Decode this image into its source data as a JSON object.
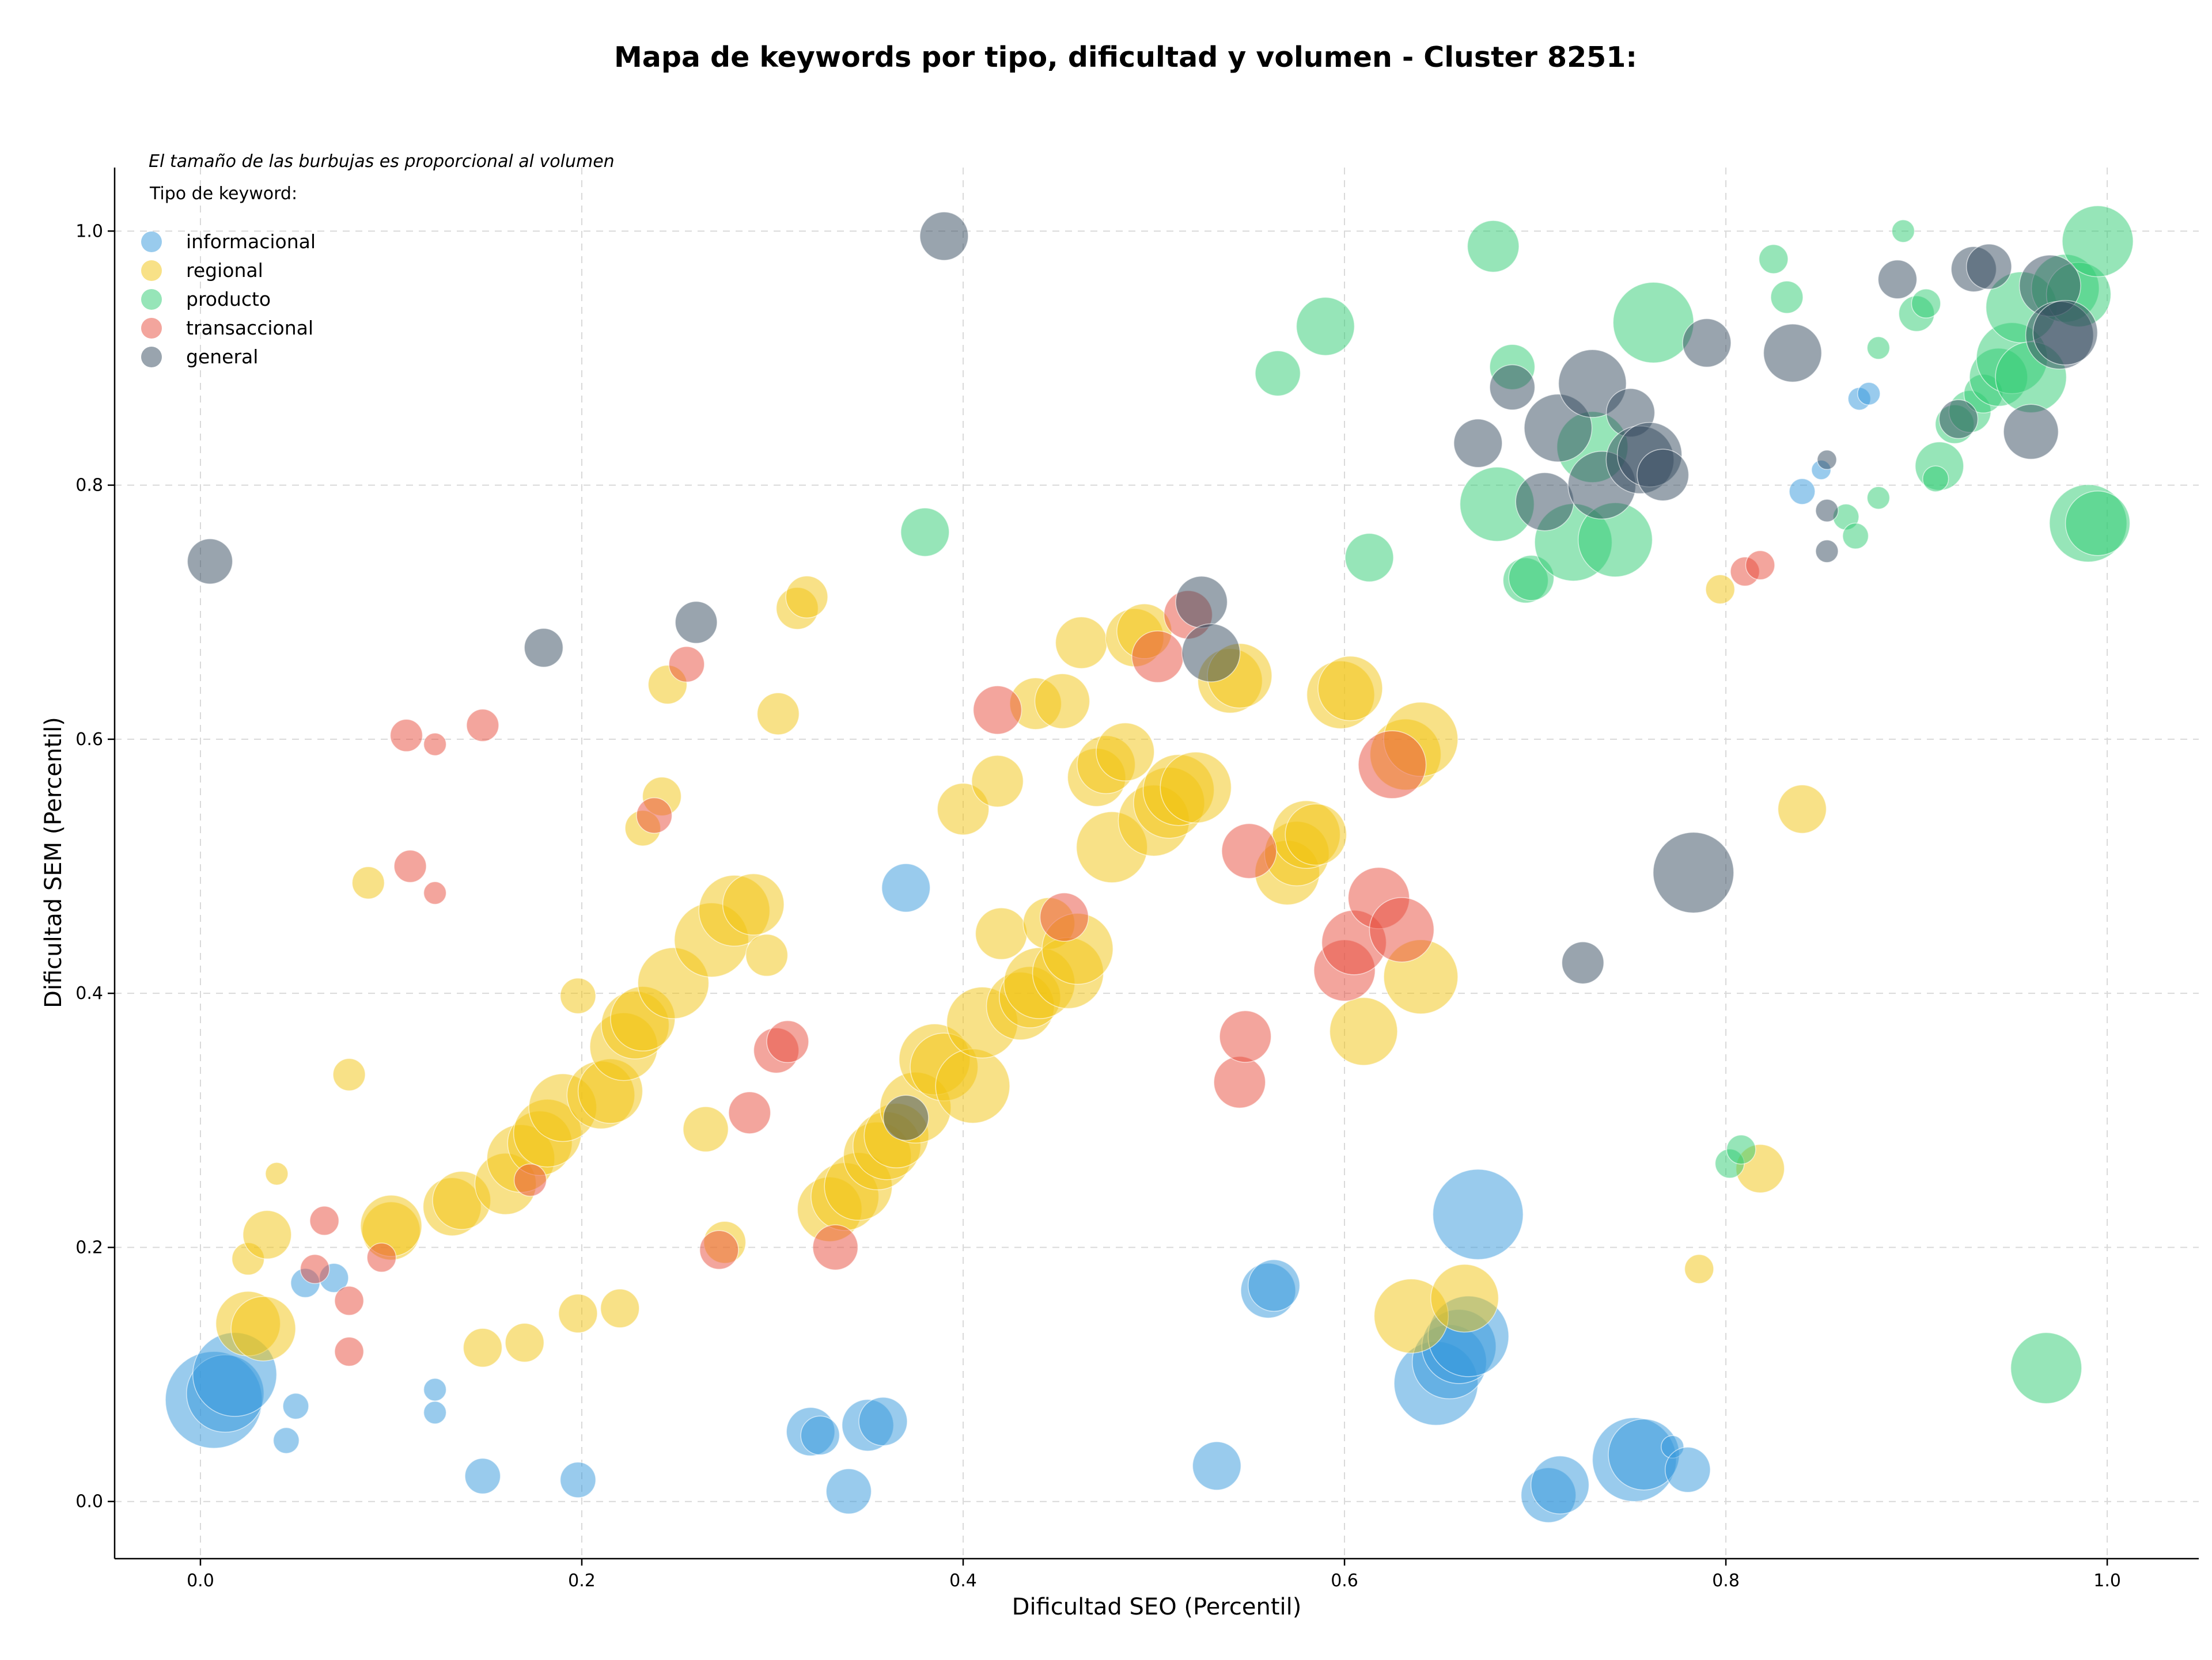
{
  "chart_data": {
    "type": "scatter",
    "title": "Mapa de keywords por tipo, dificultad y volumen - Cluster 8251:",
    "subtitle": "El tamaño de las burbujas es proporcional al volumen",
    "xlabel": "Dificultad SEO (Percentil)",
    "ylabel": "Dificultad SEM (Percentil)",
    "xlim": [
      -0.045,
      1.048
    ],
    "ylim": [
      -0.045,
      1.05
    ],
    "xticks": [
      "0.0",
      "0.2",
      "0.4",
      "0.6",
      "0.8",
      "1.0"
    ],
    "yticks": [
      "0.0",
      "0.2",
      "0.4",
      "0.6",
      "0.8",
      "1.0"
    ],
    "grid": true,
    "legend": {
      "title": "Tipo de keyword:",
      "placement": "top-left"
    },
    "series": [
      {
        "name": "informacional",
        "color": "#3498db",
        "points": [
          [
            0.007,
            0.08,
            3
          ],
          [
            0.013,
            0.085,
            2.4
          ],
          [
            0.018,
            0.1,
            2.6
          ],
          [
            0.05,
            0.075,
            0.8
          ],
          [
            0.045,
            0.048,
            0.8
          ],
          [
            0.055,
            0.172,
            0.9
          ],
          [
            0.07,
            0.176,
            0.9
          ],
          [
            0.123,
            0.088,
            0.7
          ],
          [
            0.123,
            0.07,
            0.7
          ],
          [
            0.148,
            0.02,
            1.1
          ],
          [
            0.198,
            0.017,
            1.1
          ],
          [
            0.32,
            0.055,
            1.5
          ],
          [
            0.325,
            0.052,
            1.2
          ],
          [
            0.34,
            0.008,
            1.4
          ],
          [
            0.35,
            0.06,
            1.6
          ],
          [
            0.358,
            0.063,
            1.5
          ],
          [
            0.37,
            0.483,
            1.5
          ],
          [
            0.533,
            0.028,
            1.5
          ],
          [
            0.56,
            0.166,
            1.7
          ],
          [
            0.563,
            0.17,
            1.6
          ],
          [
            0.648,
            0.093,
            2.6
          ],
          [
            0.655,
            0.11,
            2.3
          ],
          [
            0.66,
            0.122,
            2.3
          ],
          [
            0.665,
            0.13,
            2.5
          ],
          [
            0.67,
            0.226,
            2.8
          ],
          [
            0.707,
            0.005,
            1.7
          ],
          [
            0.713,
            0.013,
            1.8
          ],
          [
            0.752,
            0.033,
            2.6
          ],
          [
            0.757,
            0.037,
            2.2
          ],
          [
            0.772,
            0.043,
            0.7
          ],
          [
            0.78,
            0.025,
            1.4
          ],
          [
            0.84,
            0.795,
            0.8
          ],
          [
            0.85,
            0.812,
            0.6
          ],
          [
            0.87,
            0.868,
            0.7
          ],
          [
            0.875,
            0.872,
            0.7
          ]
        ]
      },
      {
        "name": "regional",
        "color": "#f1c40f",
        "points": [
          [
            0.04,
            0.258,
            0.7
          ],
          [
            0.025,
            0.191,
            1
          ],
          [
            0.035,
            0.21,
            1.5
          ],
          [
            0.025,
            0.14,
            2
          ],
          [
            0.033,
            0.136,
            2
          ],
          [
            0.088,
            0.487,
            1
          ],
          [
            0.078,
            0.336,
            1
          ],
          [
            0.1,
            0.213,
            1.8
          ],
          [
            0.1,
            0.217,
            1.9
          ],
          [
            0.132,
            0.232,
            1.8
          ],
          [
            0.137,
            0.237,
            1.8
          ],
          [
            0.148,
            0.121,
            1.2
          ],
          [
            0.16,
            0.25,
            1.9
          ],
          [
            0.168,
            0.27,
            2.1
          ],
          [
            0.17,
            0.125,
            1.2
          ],
          [
            0.178,
            0.282,
            2
          ],
          [
            0.182,
            0.29,
            2.1
          ],
          [
            0.19,
            0.31,
            2.1
          ],
          [
            0.198,
            0.398,
            1.1
          ],
          [
            0.198,
            0.148,
            1.2
          ],
          [
            0.21,
            0.32,
            2.1
          ],
          [
            0.215,
            0.323,
            2
          ],
          [
            0.22,
            0.152,
            1.2
          ],
          [
            0.222,
            0.358,
            2.1
          ],
          [
            0.228,
            0.375,
            2.1
          ],
          [
            0.232,
            0.38,
            2
          ],
          [
            0.232,
            0.53,
            1.1
          ],
          [
            0.242,
            0.555,
            1.2
          ],
          [
            0.245,
            0.643,
            1.2
          ],
          [
            0.248,
            0.408,
            2.2
          ],
          [
            0.265,
            0.293,
            1.4
          ],
          [
            0.268,
            0.442,
            2.3
          ],
          [
            0.275,
            0.204,
            1.3
          ],
          [
            0.28,
            0.465,
            2.2
          ],
          [
            0.29,
            0.47,
            1.9
          ],
          [
            0.297,
            0.43,
            1.3
          ],
          [
            0.303,
            0.62,
            1.3
          ],
          [
            0.313,
            0.703,
            1.3
          ],
          [
            0.318,
            0.712,
            1.3
          ],
          [
            0.33,
            0.23,
            2
          ],
          [
            0.338,
            0.24,
            2.1
          ],
          [
            0.345,
            0.248,
            2.1
          ],
          [
            0.355,
            0.272,
            2.1
          ],
          [
            0.36,
            0.28,
            2.1
          ],
          [
            0.365,
            0.288,
            2
          ],
          [
            0.375,
            0.31,
            2.2
          ],
          [
            0.385,
            0.348,
            2.2
          ],
          [
            0.39,
            0.342,
            2.1
          ],
          [
            0.4,
            0.545,
            1.6
          ],
          [
            0.405,
            0.327,
            2.3
          ],
          [
            0.41,
            0.377,
            2.2
          ],
          [
            0.418,
            0.567,
            1.6
          ],
          [
            0.42,
            0.447,
            1.6
          ],
          [
            0.43,
            0.39,
            2.1
          ],
          [
            0.435,
            0.397,
            1.9
          ],
          [
            0.438,
            0.628,
            1.6
          ],
          [
            0.44,
            0.408,
            2.2
          ],
          [
            0.445,
            0.455,
            1.6
          ],
          [
            0.452,
            0.63,
            1.7
          ],
          [
            0.455,
            0.416,
            2.2
          ],
          [
            0.46,
            0.435,
            2.2
          ],
          [
            0.462,
            0.676,
            1.6
          ],
          [
            0.47,
            0.57,
            1.8
          ],
          [
            0.475,
            0.58,
            1.8
          ],
          [
            0.478,
            0.515,
            2.2
          ],
          [
            0.485,
            0.59,
            1.8
          ],
          [
            0.49,
            0.68,
            1.8
          ],
          [
            0.495,
            0.685,
            1.7
          ],
          [
            0.5,
            0.536,
            2.2
          ],
          [
            0.508,
            0.55,
            2.2
          ],
          [
            0.513,
            0.56,
            2.2
          ],
          [
            0.522,
            0.562,
            2.2
          ],
          [
            0.54,
            0.646,
            2
          ],
          [
            0.545,
            0.65,
            2
          ],
          [
            0.57,
            0.495,
            2
          ],
          [
            0.575,
            0.51,
            2
          ],
          [
            0.58,
            0.525,
            2.1
          ],
          [
            0.585,
            0.525,
            1.9
          ],
          [
            0.598,
            0.635,
            2.1
          ],
          [
            0.603,
            0.64,
            2
          ],
          [
            0.61,
            0.37,
            2.1
          ],
          [
            0.632,
            0.588,
            2.2
          ],
          [
            0.64,
            0.6,
            2.3
          ],
          [
            0.64,
            0.413,
            2.3
          ],
          [
            0.635,
            0.146,
            2.3
          ],
          [
            0.663,
            0.16,
            2.1
          ],
          [
            0.786,
            0.183,
            0.9
          ],
          [
            0.797,
            0.718,
            0.9
          ],
          [
            0.818,
            0.262,
            1.5
          ],
          [
            0.84,
            0.545,
            1.5
          ]
        ]
      },
      {
        "name": "producto",
        "color": "#2ecc71",
        "points": [
          [
            0.38,
            0.763,
            1.5
          ],
          [
            0.565,
            0.888,
            1.4
          ],
          [
            0.59,
            0.925,
            1.8
          ],
          [
            0.613,
            0.743,
            1.5
          ],
          [
            0.678,
            0.988,
            1.6
          ],
          [
            0.68,
            0.785,
            2.3
          ],
          [
            0.688,
            0.893,
            1.4
          ],
          [
            0.695,
            0.725,
            1.4
          ],
          [
            0.698,
            0.727,
            1.4
          ],
          [
            0.72,
            0.755,
            2.4
          ],
          [
            0.73,
            0.83,
            2.2
          ],
          [
            0.742,
            0.757,
            2.3
          ],
          [
            0.762,
            0.928,
            2.5
          ],
          [
            0.802,
            0.266,
            0.9
          ],
          [
            0.808,
            0.277,
            0.9
          ],
          [
            0.825,
            0.978,
            0.9
          ],
          [
            0.832,
            0.948,
            1
          ],
          [
            0.863,
            0.775,
            0.8
          ],
          [
            0.868,
            0.76,
            0.8
          ],
          [
            0.88,
            0.908,
            0.7
          ],
          [
            0.88,
            0.79,
            0.7
          ],
          [
            0.893,
            1.0,
            0.7
          ],
          [
            0.9,
            0.935,
            1.1
          ],
          [
            0.905,
            0.943,
            0.9
          ],
          [
            0.912,
            0.815,
            1.5
          ],
          [
            0.91,
            0.805,
            0.8
          ],
          [
            0.92,
            0.848,
            1.2
          ],
          [
            0.928,
            0.858,
            1.3
          ],
          [
            0.935,
            0.872,
            1.2
          ],
          [
            0.943,
            0.885,
            1.8
          ],
          [
            0.95,
            0.9,
            2.2
          ],
          [
            0.955,
            0.94,
            2.2
          ],
          [
            0.96,
            0.885,
            2.2
          ],
          [
            0.968,
            0.105,
            2.2
          ],
          [
            0.978,
            0.955,
            2.1
          ],
          [
            0.985,
            0.95,
            2
          ],
          [
            0.99,
            0.77,
            2.4
          ],
          [
            0.995,
            0.77,
            2
          ],
          [
            0.995,
            0.992,
            2.2
          ]
        ]
      },
      {
        "name": "transaccional",
        "color": "#e74c3c",
        "points": [
          [
            0.065,
            0.221,
            0.9
          ],
          [
            0.06,
            0.183,
            0.9
          ],
          [
            0.078,
            0.118,
            0.9
          ],
          [
            0.078,
            0.158,
            0.9
          ],
          [
            0.095,
            0.192,
            0.9
          ],
          [
            0.108,
            0.603,
            1
          ],
          [
            0.11,
            0.5,
            1
          ],
          [
            0.123,
            0.596,
            0.7
          ],
          [
            0.123,
            0.479,
            0.7
          ],
          [
            0.148,
            0.611,
            1
          ],
          [
            0.173,
            0.253,
            1
          ],
          [
            0.238,
            0.54,
            1.1
          ],
          [
            0.255,
            0.659,
            1.1
          ],
          [
            0.272,
            0.198,
            1.2
          ],
          [
            0.288,
            0.306,
            1.3
          ],
          [
            0.302,
            0.355,
            1.4
          ],
          [
            0.308,
            0.362,
            1.3
          ],
          [
            0.333,
            0.2,
            1.4
          ],
          [
            0.418,
            0.623,
            1.5
          ],
          [
            0.453,
            0.46,
            1.5
          ],
          [
            0.502,
            0.665,
            1.6
          ],
          [
            0.518,
            0.698,
            1.5
          ],
          [
            0.545,
            0.33,
            1.6
          ],
          [
            0.548,
            0.366,
            1.6
          ],
          [
            0.55,
            0.512,
            1.7
          ],
          [
            0.6,
            0.418,
            1.9
          ],
          [
            0.605,
            0.44,
            2
          ],
          [
            0.618,
            0.475,
            1.9
          ],
          [
            0.625,
            0.58,
            2.1
          ],
          [
            0.63,
            0.45,
            2
          ],
          [
            0.81,
            0.732,
            0.9
          ],
          [
            0.818,
            0.737,
            0.9
          ]
        ]
      },
      {
        "name": "general",
        "color": "#34495e",
        "points": [
          [
            0.005,
            0.74,
            1.4
          ],
          [
            0.18,
            0.672,
            1.2
          ],
          [
            0.26,
            0.692,
            1.3
          ],
          [
            0.37,
            0.302,
            1.4
          ],
          [
            0.39,
            0.996,
            1.5
          ],
          [
            0.525,
            0.708,
            1.6
          ],
          [
            0.53,
            0.668,
            1.8
          ],
          [
            0.67,
            0.833,
            1.5
          ],
          [
            0.688,
            0.877,
            1.4
          ],
          [
            0.705,
            0.787,
            1.8
          ],
          [
            0.712,
            0.845,
            2.1
          ],
          [
            0.725,
            0.424,
            1.3
          ],
          [
            0.73,
            0.88,
            2.1
          ],
          [
            0.735,
            0.8,
            2.1
          ],
          [
            0.75,
            0.857,
            1.5
          ],
          [
            0.755,
            0.82,
            2.1
          ],
          [
            0.76,
            0.824,
            2
          ],
          [
            0.767,
            0.808,
            1.6
          ],
          [
            0.783,
            0.495,
            2.5
          ],
          [
            0.79,
            0.912,
            1.5
          ],
          [
            0.835,
            0.904,
            1.8
          ],
          [
            0.853,
            0.82,
            0.6
          ],
          [
            0.853,
            0.78,
            0.7
          ],
          [
            0.853,
            0.748,
            0.7
          ],
          [
            0.89,
            0.962,
            1.2
          ],
          [
            0.922,
            0.852,
            1.2
          ],
          [
            0.93,
            0.97,
            1.4
          ],
          [
            0.938,
            0.972,
            1.4
          ],
          [
            0.96,
            0.842,
            1.7
          ],
          [
            0.97,
            0.957,
            1.9
          ],
          [
            0.975,
            0.918,
            2.1
          ],
          [
            0.978,
            0.92,
            2
          ]
        ]
      }
    ]
  }
}
